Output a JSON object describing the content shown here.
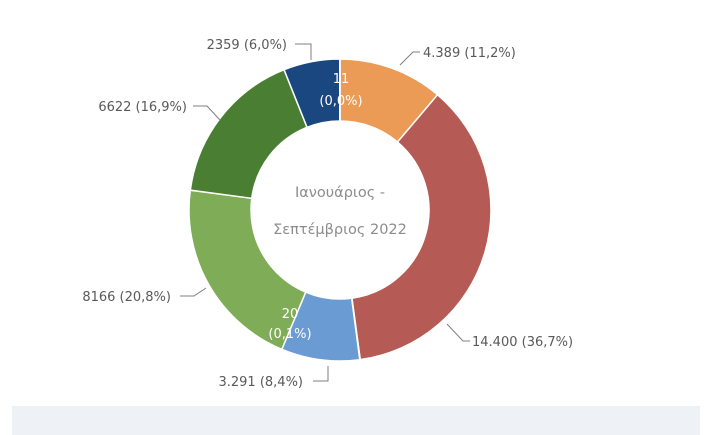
{
  "chart_data": {
    "type": "pie",
    "title": "Ιανουάριος   -   Σεπτέμβριος 2022",
    "title_lines": [
      "Ιανουάριος   -",
      "Σεπτέμβριος 2022"
    ],
    "slices": [
      {
        "value": 4389,
        "label": "4.389 (11,2%)",
        "color": "#eb9b55"
      },
      {
        "value": 14400,
        "label": "14.400 (36,7%)",
        "color": "#b55a54"
      },
      {
        "value": 20,
        "label": "20 (0,1%)",
        "color": "#d9c94a"
      },
      {
        "value": 3291,
        "label": "3.291 (8,4%)",
        "color": "#6a9bd2"
      },
      {
        "value": 8166,
        "label": "8166 (20,8%)",
        "color": "#7fac57"
      },
      {
        "value": 6622,
        "label": "6622 (16,9%)",
        "color": "#4a7f33"
      },
      {
        "value": 2359,
        "label": "2359 (6,0%)",
        "color": "#1a4780"
      },
      {
        "value": 11,
        "label": "11 (0,0%)",
        "color": "#c8c8c8"
      }
    ],
    "inner_labels": [
      {
        "slice": 7,
        "lines": [
          "11",
          "(0,0%)"
        ]
      },
      {
        "slice": 2,
        "lines": [
          "20",
          "(0,1%)"
        ]
      }
    ],
    "legend": "none",
    "chart_style": "donut"
  }
}
